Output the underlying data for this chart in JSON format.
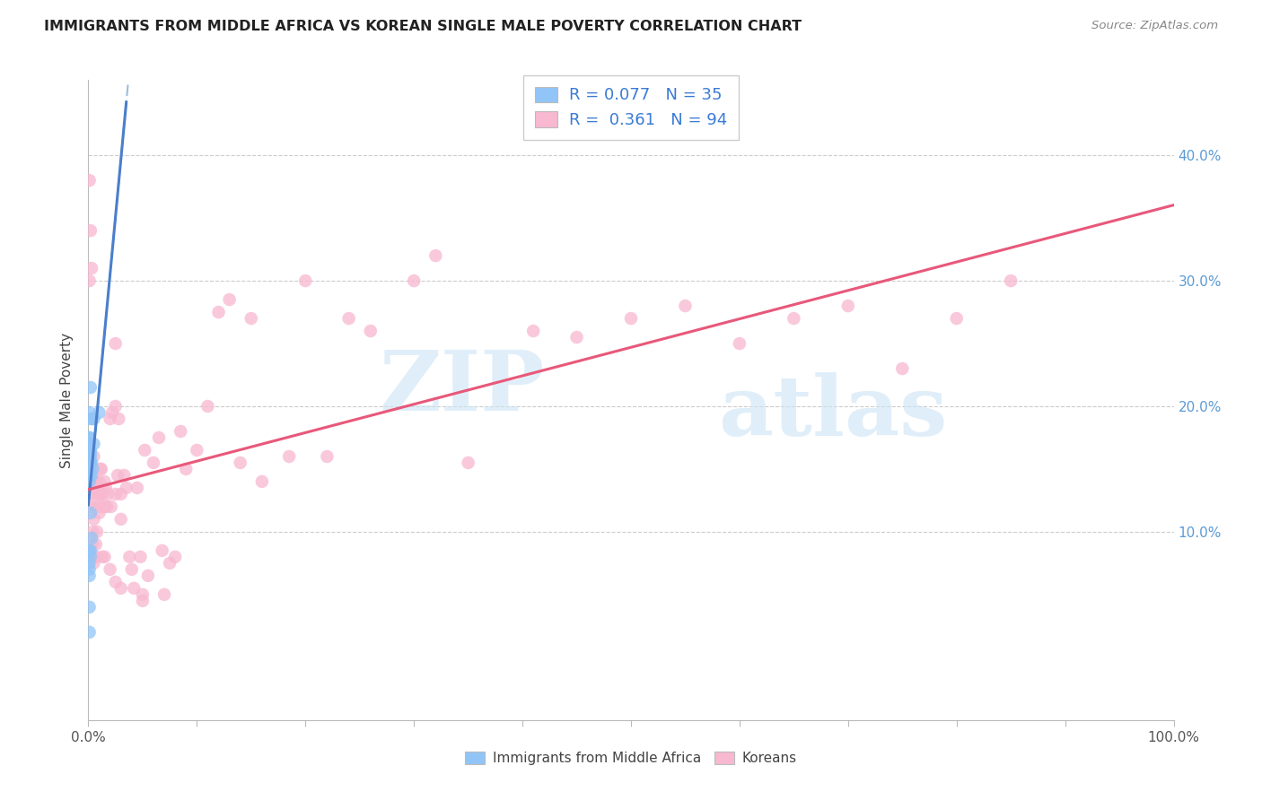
{
  "title": "IMMIGRANTS FROM MIDDLE AFRICA VS KOREAN SINGLE MALE POVERTY CORRELATION CHART",
  "source": "Source: ZipAtlas.com",
  "ylabel": "Single Male Poverty",
  "yticks": [
    "10.0%",
    "20.0%",
    "30.0%",
    "40.0%"
  ],
  "ytick_vals": [
    0.1,
    0.2,
    0.3,
    0.4
  ],
  "watermark_zip": "ZIP",
  "watermark_atlas": "atlas",
  "blue_color": "#92c5f7",
  "pink_color": "#f7b8d0",
  "blue_line_color": "#4a7fcc",
  "pink_line_color": "#e8587a",
  "dashed_line_color": "#9bbfe0",
  "blue_r": 0.077,
  "pink_r": 0.361,
  "blue_scatter_x": [
    0.001,
    0.002,
    0.001,
    0.001,
    0.003,
    0.001,
    0.002,
    0.001,
    0.001,
    0.002,
    0.002,
    0.001,
    0.003,
    0.004,
    0.002,
    0.001,
    0.001,
    0.003,
    0.001,
    0.005,
    0.001,
    0.003,
    0.001,
    0.002,
    0.01,
    0.005,
    0.001,
    0.001,
    0.002,
    0.001,
    0.001,
    0.003,
    0.001,
    0.002,
    0.001
  ],
  "blue_scatter_y": [
    0.195,
    0.215,
    0.175,
    0.175,
    0.19,
    0.155,
    0.162,
    0.17,
    0.16,
    0.155,
    0.165,
    0.16,
    0.155,
    0.15,
    0.16,
    0.145,
    0.14,
    0.145,
    0.15,
    0.19,
    0.085,
    0.095,
    0.155,
    0.08,
    0.195,
    0.17,
    0.075,
    0.07,
    0.085,
    0.065,
    0.16,
    0.19,
    0.04,
    0.115,
    0.02
  ],
  "pink_scatter_x": [
    0.001,
    0.001,
    0.002,
    0.003,
    0.003,
    0.004,
    0.005,
    0.003,
    0.004,
    0.005,
    0.006,
    0.005,
    0.006,
    0.007,
    0.006,
    0.007,
    0.007,
    0.008,
    0.009,
    0.01,
    0.01,
    0.011,
    0.012,
    0.013,
    0.015,
    0.012,
    0.013,
    0.014,
    0.015,
    0.016,
    0.017,
    0.018,
    0.02,
    0.021,
    0.025,
    0.022,
    0.025,
    0.025,
    0.027,
    0.03,
    0.028,
    0.03,
    0.033,
    0.038,
    0.035,
    0.04,
    0.045,
    0.042,
    0.048,
    0.05,
    0.055,
    0.052,
    0.06,
    0.065,
    0.068,
    0.075,
    0.08,
    0.085,
    0.09,
    0.1,
    0.11,
    0.12,
    0.13,
    0.14,
    0.15,
    0.16,
    0.185,
    0.2,
    0.22,
    0.24,
    0.26,
    0.3,
    0.32,
    0.35,
    0.41,
    0.45,
    0.5,
    0.55,
    0.6,
    0.65,
    0.7,
    0.75,
    0.8,
    0.85,
    0.003,
    0.004,
    0.006,
    0.01,
    0.015,
    0.02,
    0.025,
    0.03,
    0.05,
    0.07
  ],
  "pink_scatter_y": [
    0.38,
    0.3,
    0.34,
    0.12,
    0.31,
    0.09,
    0.11,
    0.13,
    0.08,
    0.075,
    0.14,
    0.16,
    0.13,
    0.12,
    0.14,
    0.09,
    0.08,
    0.1,
    0.12,
    0.14,
    0.13,
    0.15,
    0.13,
    0.08,
    0.12,
    0.15,
    0.13,
    0.12,
    0.14,
    0.135,
    0.12,
    0.13,
    0.19,
    0.12,
    0.25,
    0.195,
    0.2,
    0.13,
    0.145,
    0.11,
    0.19,
    0.13,
    0.145,
    0.08,
    0.135,
    0.07,
    0.135,
    0.055,
    0.08,
    0.05,
    0.065,
    0.165,
    0.155,
    0.175,
    0.085,
    0.075,
    0.08,
    0.18,
    0.15,
    0.165,
    0.2,
    0.275,
    0.285,
    0.155,
    0.27,
    0.14,
    0.16,
    0.3,
    0.16,
    0.27,
    0.26,
    0.3,
    0.32,
    0.155,
    0.26,
    0.255,
    0.27,
    0.28,
    0.25,
    0.27,
    0.28,
    0.23,
    0.27,
    0.3,
    0.08,
    0.1,
    0.08,
    0.115,
    0.08,
    0.07,
    0.06,
    0.055,
    0.045,
    0.05
  ]
}
